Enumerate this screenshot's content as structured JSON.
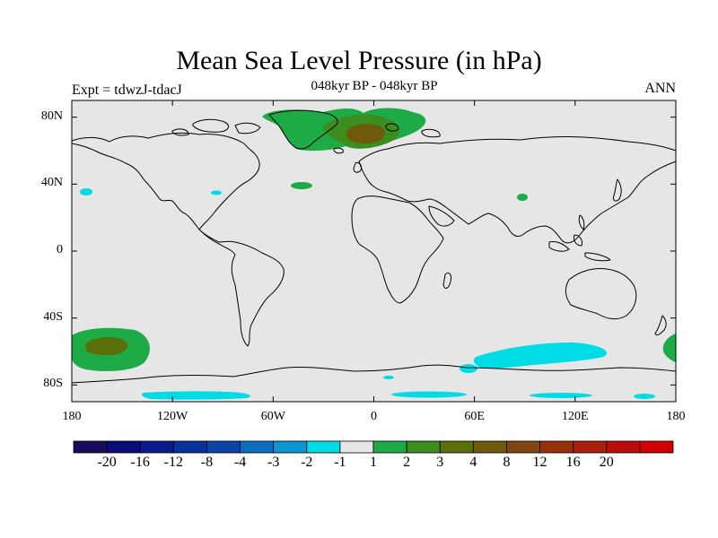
{
  "header": {
    "title": "Mean Sea Level Pressure (in hPa)",
    "subtitle": "048kyr BP - 048kyr BP",
    "left_label": "Expt = tdwzJ-tdacJ",
    "right_label": "ANN"
  },
  "map": {
    "land_fill": "#e6e6e6",
    "coast_color": "#000000"
  },
  "axes": {
    "y_ticks": [
      {
        "label": "80N",
        "lat": 80
      },
      {
        "label": "40N",
        "lat": 40
      },
      {
        "label": "0",
        "lat": 0
      },
      {
        "label": "40S",
        "lat": -40
      },
      {
        "label": "80S",
        "lat": -80
      }
    ],
    "x_ticks": [
      {
        "label": "180",
        "lon": -180
      },
      {
        "label": "120W",
        "lon": -120
      },
      {
        "label": "60W",
        "lon": -60
      },
      {
        "label": "0",
        "lon": 0
      },
      {
        "label": "60E",
        "lon": 60
      },
      {
        "label": "120E",
        "lon": 120
      },
      {
        "label": "180",
        "lon": 180
      }
    ]
  },
  "colorbar": {
    "colors": [
      "#1a0a5c",
      "#0a0a78",
      "#0a1a8c",
      "#08329c",
      "#0a46a8",
      "#0a6ec0",
      "#0a96d2",
      "#00dce6",
      "#e6e6e6",
      "#1eaa46",
      "#3c8c1e",
      "#5a6e0a",
      "#6e5a0a",
      "#824614",
      "#96320a",
      "#aa1e0a",
      "#be0a0a",
      "#d20000"
    ],
    "labels": [
      "-20",
      "-16",
      "-12",
      "-8",
      "-4",
      "-3",
      "-2",
      "-1",
      "1",
      "2",
      "3",
      "4",
      "8",
      "12",
      "16",
      "20"
    ]
  },
  "chart_data": {
    "type": "filled-contour-map",
    "title": "Mean Sea Level Pressure (in hPa)",
    "subtitle": "048kyr BP - 048kyr BP",
    "projection": "cylindrical equidistant",
    "lon_range": [
      -180,
      180
    ],
    "lat_range": [
      -90,
      90
    ],
    "levels": [
      -20,
      -16,
      -12,
      -8,
      -4,
      -3,
      -2,
      -1,
      1,
      2,
      3,
      4,
      8,
      12,
      16,
      20
    ],
    "features": [
      {
        "region": "Greenland / Barents-Kara",
        "lon": [
          -45,
          30
        ],
        "lat": [
          70,
          88
        ],
        "value_range": [
          1,
          4
        ],
        "peak_lat": 72,
        "peak_lon": -5
      },
      {
        "region": "South Pacific",
        "lon": [
          -180,
          -135
        ],
        "lat": [
          -45,
          -70
        ],
        "value_range": [
          1,
          4
        ]
      },
      {
        "region": "Southern Ocean (Indian sector)",
        "lon": [
          55,
          140
        ],
        "lat": [
          -55,
          -70
        ],
        "value_range": [
          -2,
          -1
        ]
      },
      {
        "region": "Antarctic coast",
        "lon": [
          -140,
          165
        ],
        "lat": [
          -83,
          -86
        ],
        "value_range": [
          -2,
          -1
        ]
      },
      {
        "region": "North Atlantic patch",
        "lon": [
          -50,
          -40
        ],
        "lat": [
          37,
          40
        ],
        "value_range": [
          1,
          2
        ]
      },
      {
        "region": "NE Pacific patch",
        "lon": [
          -178,
          -170
        ],
        "lat": [
          36,
          40
        ],
        "value_range": [
          -2,
          -1
        ]
      },
      {
        "region": "Tibet",
        "lon": [
          85,
          90
        ],
        "lat": [
          32,
          36
        ],
        "value_range": [
          1,
          2
        ]
      },
      {
        "region": "Southern Pacific (east)",
        "lon": [
          176,
          180
        ],
        "lat": [
          -55,
          -65
        ],
        "value_range": [
          1,
          2
        ]
      }
    ]
  }
}
